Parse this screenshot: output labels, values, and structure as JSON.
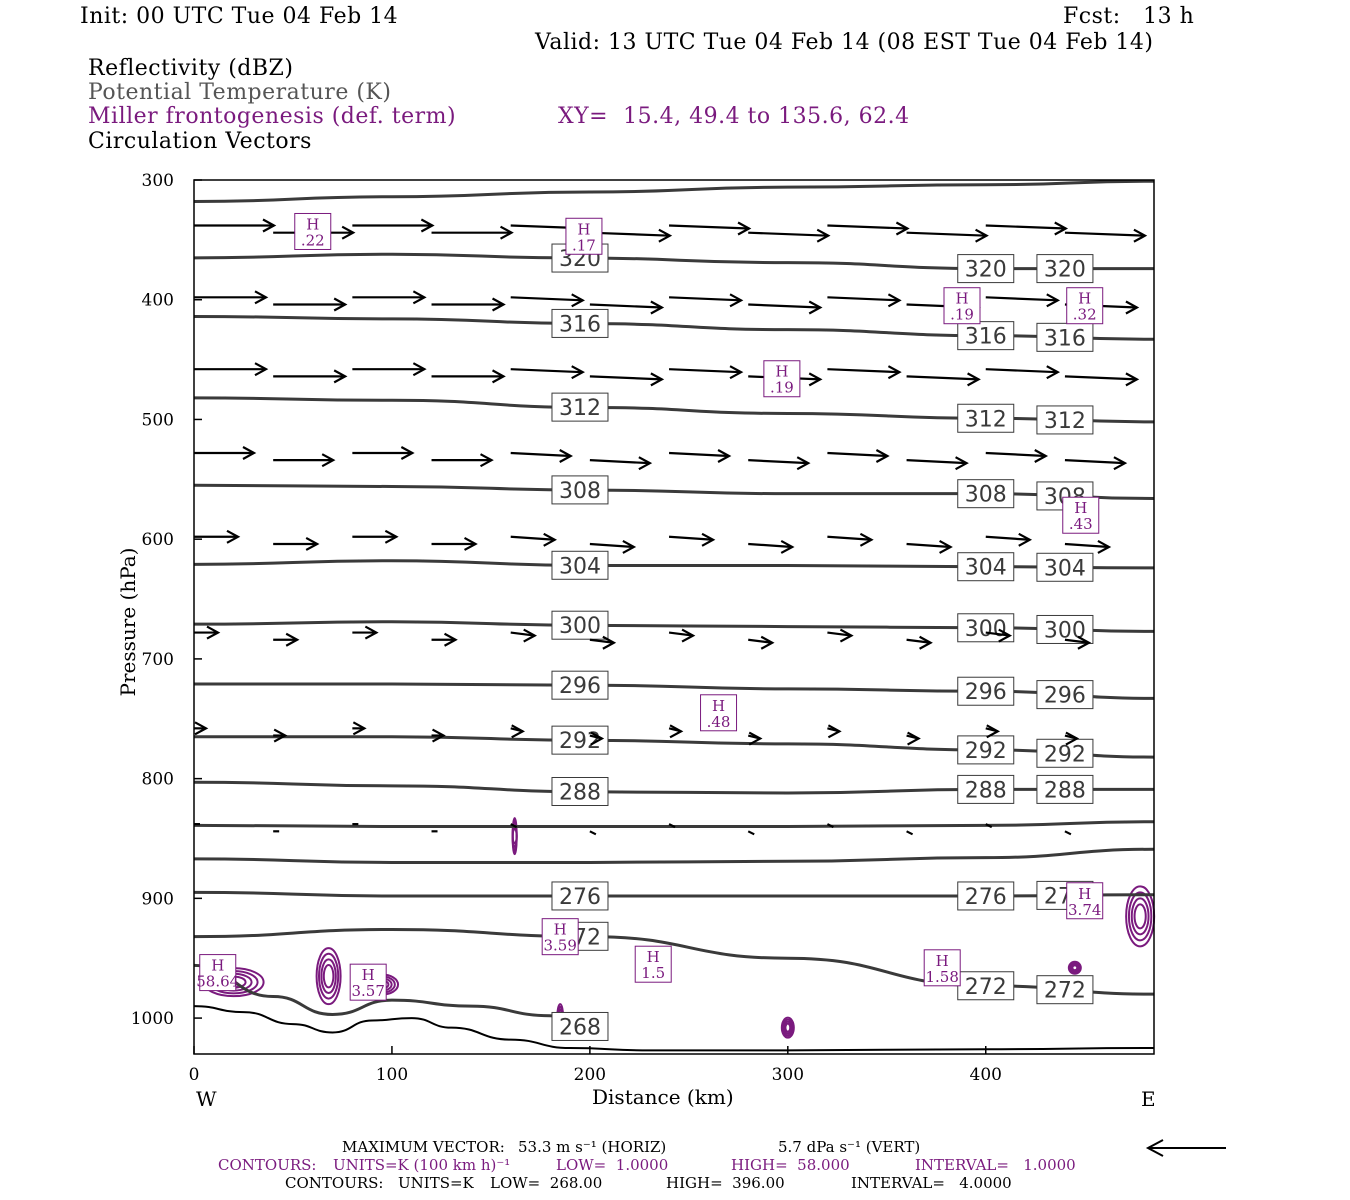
{
  "header": {
    "init": "Init: 00 UTC Tue 04 Feb 14",
    "fcst": "Fcst:   13 h",
    "valid": "Valid: 13 UTC Tue 04 Feb 14 (08 EST Tue 04 Feb 14)",
    "field1": "Reflectivity (dBZ)",
    "field2": "Potential Temperature (K)",
    "field3": "Miller frontogenesis (def. term)",
    "xy": "XY=  15.4, 49.4 to 135.6, 62.4",
    "field4": "Circulation Vectors"
  },
  "colors": {
    "theta": "#3a3a3a",
    "fronto": "#7a1a7e",
    "vectors": "#000000"
  },
  "chart_data": {
    "type": "line",
    "title": "",
    "xlabel": "Distance (km)",
    "ylabel": "Pressure (hPa)",
    "xlim": [
      0,
      485
    ],
    "ylim": [
      1030,
      300
    ],
    "x_ticks": [
      0,
      100,
      200,
      300,
      400
    ],
    "y_ticks": [
      300,
      400,
      500,
      600,
      700,
      800,
      900,
      1000
    ],
    "x_end_labels": {
      "left": "W",
      "right": "E"
    },
    "theta_contours": [
      {
        "value": 324,
        "label": "",
        "points": [
          [
            0,
            318
          ],
          [
            100,
            314
          ],
          [
            200,
            310
          ],
          [
            300,
            306
          ],
          [
            400,
            304
          ],
          [
            485,
            301
          ]
        ]
      },
      {
        "value": 320,
        "label": "320",
        "points": [
          [
            0,
            365
          ],
          [
            100,
            362
          ],
          [
            190,
            365
          ],
          [
            300,
            369
          ],
          [
            400,
            374
          ],
          [
            485,
            374
          ]
        ]
      },
      {
        "value": 316,
        "label": "316",
        "points": [
          [
            0,
            414
          ],
          [
            100,
            416
          ],
          [
            200,
            420
          ],
          [
            300,
            425
          ],
          [
            400,
            430
          ],
          [
            485,
            433
          ]
        ]
      },
      {
        "value": 312,
        "label": "312",
        "points": [
          [
            0,
            482
          ],
          [
            100,
            484
          ],
          [
            200,
            490
          ],
          [
            300,
            495
          ],
          [
            400,
            499
          ],
          [
            485,
            502
          ]
        ]
      },
      {
        "value": 308,
        "label": "308",
        "points": [
          [
            0,
            555
          ],
          [
            100,
            556
          ],
          [
            200,
            559
          ],
          [
            300,
            562
          ],
          [
            400,
            562
          ],
          [
            485,
            566
          ]
        ]
      },
      {
        "value": 304,
        "label": "304",
        "points": [
          [
            0,
            621
          ],
          [
            100,
            618
          ],
          [
            200,
            622
          ],
          [
            300,
            622
          ],
          [
            400,
            623
          ],
          [
            485,
            624
          ]
        ]
      },
      {
        "value": 300,
        "label": "300",
        "points": [
          [
            0,
            671
          ],
          [
            100,
            669
          ],
          [
            200,
            672
          ],
          [
            300,
            673
          ],
          [
            400,
            674
          ],
          [
            485,
            677
          ]
        ]
      },
      {
        "value": 296,
        "label": "296",
        "points": [
          [
            0,
            721
          ],
          [
            100,
            721
          ],
          [
            200,
            722
          ],
          [
            300,
            725
          ],
          [
            400,
            727
          ],
          [
            485,
            733
          ]
        ]
      },
      {
        "value": 292,
        "label": "292",
        "points": [
          [
            0,
            765
          ],
          [
            100,
            765
          ],
          [
            200,
            768
          ],
          [
            300,
            771
          ],
          [
            400,
            776
          ],
          [
            485,
            782
          ]
        ]
      },
      {
        "value": 288,
        "label": "288",
        "points": [
          [
            0,
            803
          ],
          [
            100,
            806
          ],
          [
            200,
            811
          ],
          [
            300,
            812
          ],
          [
            400,
            809
          ],
          [
            485,
            809
          ]
        ]
      },
      {
        "value": 284,
        "label": "",
        "points": [
          [
            0,
            839
          ],
          [
            100,
            840
          ],
          [
            200,
            840
          ],
          [
            300,
            840
          ],
          [
            400,
            839
          ],
          [
            485,
            836
          ]
        ]
      },
      {
        "value": 280,
        "label": "",
        "points": [
          [
            0,
            867
          ],
          [
            100,
            870
          ],
          [
            200,
            870
          ],
          [
            300,
            869
          ],
          [
            400,
            866
          ],
          [
            485,
            859
          ]
        ]
      },
      {
        "value": 276,
        "label": "276",
        "points": [
          [
            0,
            895
          ],
          [
            100,
            898
          ],
          [
            200,
            898
          ],
          [
            300,
            898
          ],
          [
            400,
            898
          ],
          [
            485,
            897
          ]
        ]
      },
      {
        "value": 272,
        "label": "272",
        "points": [
          [
            0,
            932
          ],
          [
            100,
            926
          ],
          [
            200,
            932
          ],
          [
            300,
            950
          ],
          [
            400,
            973
          ],
          [
            485,
            980
          ]
        ]
      },
      {
        "value": 268,
        "label": "268",
        "points": [
          [
            0,
            956
          ],
          [
            40,
            982
          ],
          [
            70,
            997
          ],
          [
            100,
            985
          ],
          [
            140,
            990
          ],
          [
            180,
            998
          ],
          [
            200,
            1010
          ]
        ]
      }
    ],
    "fronto_maxima": [
      {
        "label": "H",
        "value": ".22",
        "x": 60,
        "p": 343
      },
      {
        "label": "H",
        "value": ".17",
        "x": 197,
        "p": 347
      },
      {
        "label": "H",
        "value": ".19",
        "x": 388,
        "p": 405
      },
      {
        "label": "H",
        "value": ".32",
        "x": 450,
        "p": 405
      },
      {
        "label": "H",
        "value": ".19",
        "x": 297,
        "p": 466
      },
      {
        "label": "H",
        "value": ".43",
        "x": 448,
        "p": 580
      },
      {
        "label": "H",
        "value": ".48",
        "x": 265,
        "p": 745
      },
      {
        "label": "H",
        "value": "3.74",
        "x": 450,
        "p": 902
      },
      {
        "label": "H",
        "value": "3.59",
        "x": 185,
        "p": 932
      },
      {
        "label": "H",
        "value": "1.5",
        "x": 232,
        "p": 955
      },
      {
        "label": "H",
        "value": "1.58",
        "x": 378,
        "p": 958
      },
      {
        "label": "H",
        "value": "58.64",
        "x": 12,
        "p": 962
      },
      {
        "label": "H",
        "value": "3.57",
        "x": 88,
        "p": 970
      }
    ],
    "vector_rows": [
      {
        "p": 340,
        "u": 40
      },
      {
        "p": 400,
        "u": 36
      },
      {
        "p": 460,
        "u": 36
      },
      {
        "p": 530,
        "u": 30
      },
      {
        "p": 600,
        "u": 22
      },
      {
        "p": 680,
        "u": 12
      },
      {
        "p": 760,
        "u": 6
      },
      {
        "p": 840,
        "u": 3
      }
    ]
  },
  "footer": {
    "maxvec_label": "MAXIMUM VECTOR:",
    "maxvec_horiz": "53.3 m s⁻¹ (HORIZ)",
    "maxvec_vert": "5.7 dPa s⁻¹ (VERT)",
    "contours1_label": "CONTOURS:",
    "contours1_units": "UNITS=K (100 km h)⁻¹",
    "contours1_low": "LOW=  1.0000",
    "contours1_high": "HIGH=  58.000",
    "contours1_interval": "INTERVAL=   1.0000",
    "contours2_label": "CONTOURS:",
    "contours2_units": "UNITS=K",
    "contours2_low": "LOW=  268.00",
    "contours2_high": "HIGH=  396.00",
    "contours2_interval": "INTERVAL=   4.0000"
  }
}
